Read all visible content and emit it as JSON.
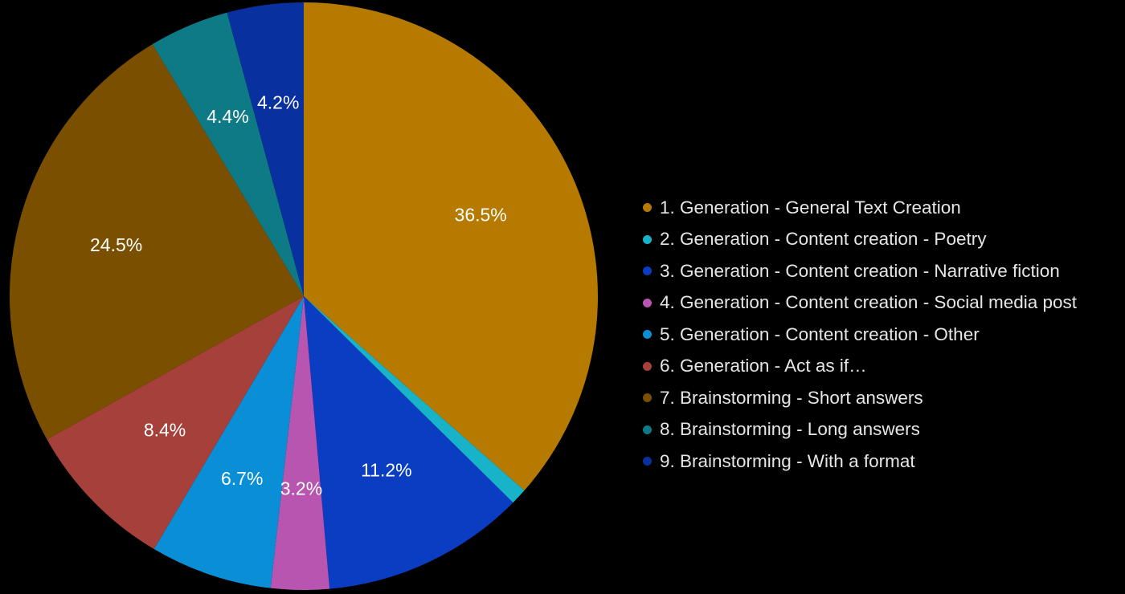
{
  "chart_data": {
    "type": "pie",
    "title": "",
    "legend_position": "right",
    "slices": [
      {
        "label": "1. Generation - General Text Creation",
        "value": 36.5,
        "display": "36.5%",
        "color": "#B77A00"
      },
      {
        "label": "2. Generation - Content creation - Poetry",
        "value": 0.9,
        "display": "",
        "color": "#19B3C9"
      },
      {
        "label": "3. Generation - Content creation - Narrative fiction",
        "value": 11.2,
        "display": "11.2%",
        "color": "#0A3DC2"
      },
      {
        "label": "4. Generation - Content creation - Social media post",
        "value": 3.2,
        "display": "3.2%",
        "color": "#B855B0"
      },
      {
        "label": "5. Generation - Content creation - Other",
        "value": 6.7,
        "display": "6.7%",
        "color": "#0A8FD6"
      },
      {
        "label": "6. Generation - Act as if…",
        "value": 8.4,
        "display": "8.4%",
        "color": "#A5413A"
      },
      {
        "label": "7. Brainstorming - Short answers",
        "value": 24.5,
        "display": "24.5%",
        "color": "#7A5000"
      },
      {
        "label": "8. Brainstorming - Long answers",
        "value": 4.4,
        "display": "4.4%",
        "color": "#0E7A85"
      },
      {
        "label": "9. Brainstorming - With a format",
        "value": 4.2,
        "display": "4.2%",
        "color": "#08309E"
      }
    ]
  }
}
